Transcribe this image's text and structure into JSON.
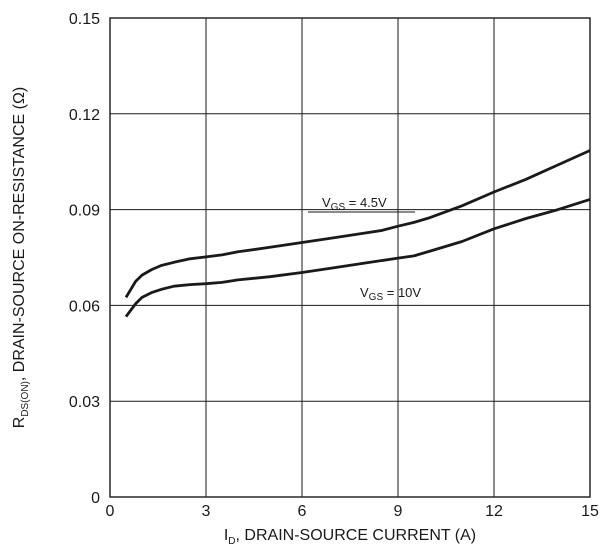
{
  "chart_data": {
    "type": "line",
    "xlabel": {
      "main": "I",
      "sub": "D",
      "rest": ", DRAIN-SOURCE CURRENT (A)"
    },
    "ylabel": {
      "main": "R",
      "sub": "DS(ON)",
      "rest": ", DRAIN-SOURCE ON-RESISTANCE (Ω)"
    },
    "xlim": [
      0,
      15
    ],
    "ylim": [
      0,
      0.15
    ],
    "xticks": [
      0,
      3,
      6,
      9,
      12,
      15
    ],
    "xtick_labels": [
      "0",
      "3",
      "6",
      "9",
      "12",
      "15"
    ],
    "yticks": [
      0,
      0.03,
      0.06,
      0.09,
      0.12,
      0.15
    ],
    "ytick_labels": [
      "0",
      "0.03",
      "0.06",
      "0.09",
      "0.12",
      "0.15"
    ],
    "grid": true,
    "series": [
      {
        "label": {
          "main": "V",
          "sub": "GS",
          "rest": " = 4.5V"
        },
        "x": [
          0.5,
          0.8,
          1.0,
          1.3,
          1.6,
          2.0,
          2.5,
          3.0,
          3.5,
          4.0,
          5.0,
          6.0,
          7.0,
          8.0,
          8.5,
          9.0,
          9.5,
          10.0,
          11.0,
          12.0,
          13.0,
          14.0,
          15.0
        ],
        "y": [
          0.0625,
          0.0675,
          0.0695,
          0.0712,
          0.0725,
          0.0735,
          0.0746,
          0.0752,
          0.0758,
          0.0768,
          0.0782,
          0.0797,
          0.0812,
          0.0827,
          0.0835,
          0.0848,
          0.086,
          0.0875,
          0.0912,
          0.0955,
          0.0995,
          0.104,
          0.1085
        ]
      },
      {
        "label": {
          "main": "V",
          "sub": "GS",
          "rest": " = 10V"
        },
        "x": [
          0.5,
          0.8,
          1.0,
          1.3,
          1.6,
          2.0,
          2.5,
          3.0,
          3.5,
          4.0,
          5.0,
          6.0,
          7.0,
          8.0,
          9.0,
          9.5,
          10.0,
          11.0,
          12.0,
          13.0,
          14.0,
          15.0
        ],
        "y": [
          0.0565,
          0.0605,
          0.0625,
          0.064,
          0.065,
          0.066,
          0.0665,
          0.0668,
          0.0672,
          0.068,
          0.069,
          0.0703,
          0.0718,
          0.0733,
          0.0748,
          0.0755,
          0.077,
          0.08,
          0.084,
          0.0872,
          0.09,
          0.0932
        ]
      }
    ]
  }
}
